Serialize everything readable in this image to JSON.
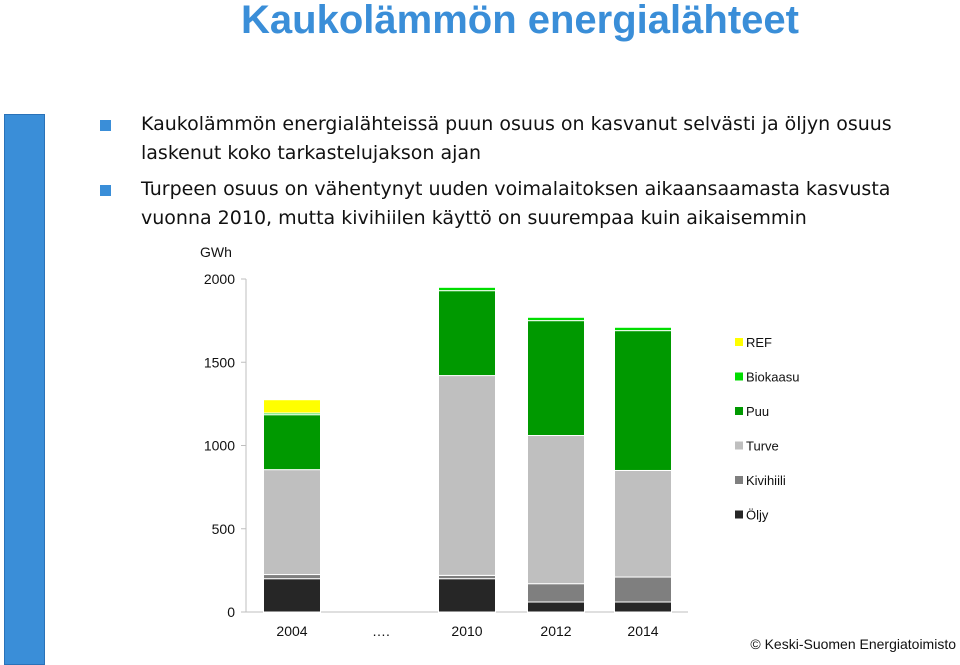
{
  "slide": {
    "title": "Kaukolämmön energialähteet",
    "bullets": [
      "Kaukolämmön energialähteissä puun osuus on kasvanut selvästi ja öljyn osuus laskenut koko tarkastelujakson ajan",
      "Turpeen osuus on vähentynyt uuden voimalaitoksen aikaansaamasta kasvusta vuonna 2010, mutta kivihiilen käyttö on suurempaa kuin aikaisemmin"
    ],
    "copyright": "© Keski-Suomen Energiatoimisto"
  },
  "chart_data": {
    "type": "bar",
    "stacked": true,
    "categories": [
      "2004",
      "….",
      "2010",
      "2012",
      "2014"
    ],
    "ylabel": "GWh",
    "ylim": [
      0,
      2000
    ],
    "yticks": [
      0,
      500,
      1000,
      1500,
      2000
    ],
    "legend_position": "right",
    "series": [
      {
        "name": "Öljy",
        "color": "#262626",
        "values": [
          200,
          null,
          200,
          60,
          60
        ]
      },
      {
        "name": "Kivihiili",
        "color": "#7f7f7f",
        "values": [
          25,
          null,
          20,
          110,
          150
        ]
      },
      {
        "name": "Turve",
        "color": "#bfbfbf",
        "values": [
          630,
          null,
          1200,
          890,
          640
        ]
      },
      {
        "name": "Puu",
        "color": "#009900",
        "values": [
          330,
          null,
          510,
          690,
          840
        ]
      },
      {
        "name": "Biokaasu",
        "color": "#00dd00",
        "values": [
          10,
          null,
          20,
          20,
          20
        ]
      },
      {
        "name": "REF",
        "color": "#ffff00",
        "values": [
          80,
          null,
          0,
          0,
          0
        ]
      }
    ]
  }
}
